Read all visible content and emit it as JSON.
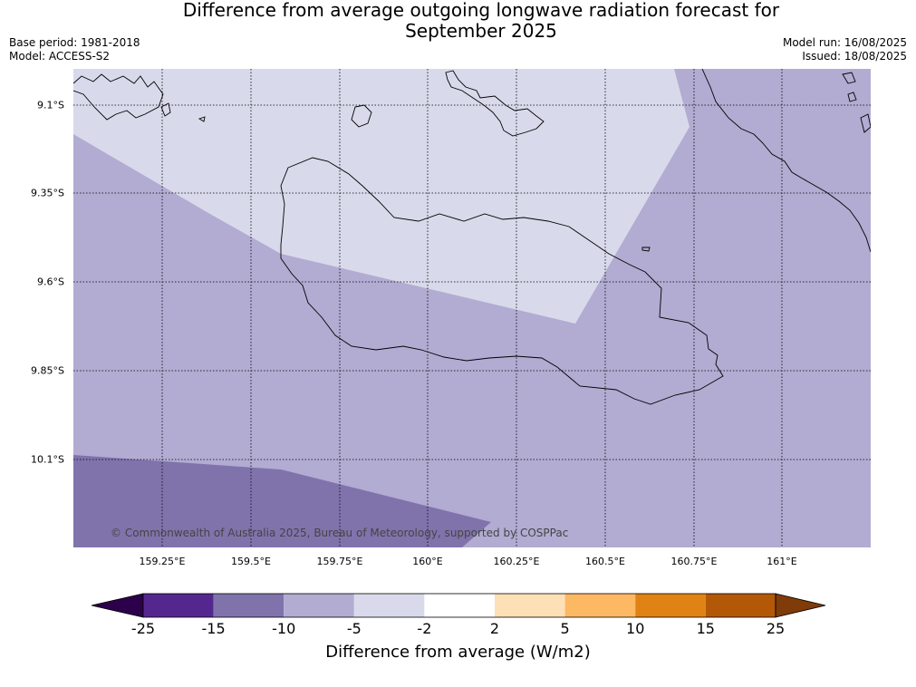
{
  "title_lines": [
    "Difference from average outgoing longwave radiation forecast for",
    "September 2025"
  ],
  "base_period": "Base period: 1981-2018",
  "model": "Model: ACCESS-S2",
  "model_run": "Model run: 16/08/2025",
  "issued": "Issued: 18/08/2025",
  "copyright": "© Commonwealth of Australia 2025, Bureau of Meteorology, supported by COSPPac",
  "lat_labels": [
    "9.1°S",
    "9.35°S",
    "9.6°S",
    "9.85°S",
    "10.1°S"
  ],
  "lon_labels": [
    "159.25°E",
    "159.5°E",
    "159.75°E",
    "160°E",
    "160.25°E",
    "160.5°E",
    "160.75°E",
    "161°E"
  ],
  "colorbar": {
    "title": "Difference from average (W/m2)",
    "ticks": [
      "-25",
      "-15",
      "-10",
      "-5",
      "-2",
      "2",
      "5",
      "10",
      "15",
      "25"
    ],
    "colors": [
      "#54278f",
      "#8073ac",
      "#b2abd2",
      "#d8daeb",
      "#ffffff",
      "#fee0b6",
      "#fdb863",
      "#e08214",
      "#b35806"
    ],
    "under_color": "#2d004b",
    "over_color": "#7f3b08"
  },
  "map_colors": {
    "light": "#d8daeb",
    "medium": "#b2abd2",
    "dark": "#8073ac"
  }
}
